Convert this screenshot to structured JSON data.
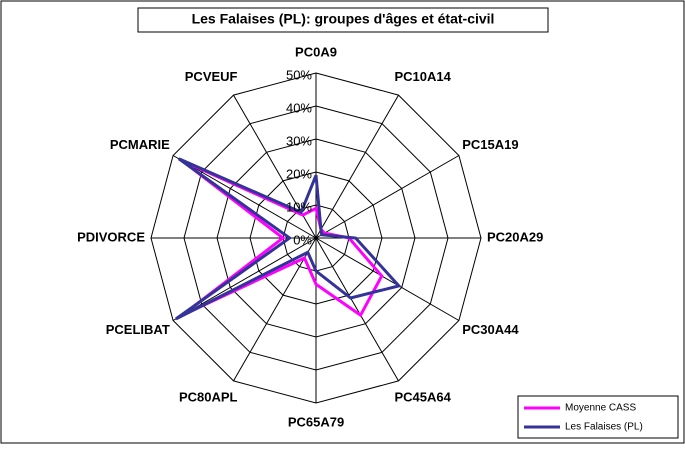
{
  "chart_data": {
    "type": "radar",
    "title": "Les Falaises (PL): groupes d'âges et état-civil",
    "categories": [
      "PC0A9",
      "PC10A14",
      "PC15A19",
      "PC20A29",
      "PC30A44",
      "PC45A64",
      "PC65A79",
      "PC80APL",
      "PCELIBAT",
      "PDIVORCE",
      "PCMARIE",
      "PCVEUF"
    ],
    "series": [
      {
        "name": "Moyenne CASS",
        "color": "#ff00ff",
        "values": [
          9,
          3,
          3,
          10,
          23,
          27,
          14,
          7,
          47,
          10,
          47,
          8
        ]
      },
      {
        "name": "Les Falaises (PL)",
        "color": "#333399",
        "values": [
          19,
          3,
          2,
          12,
          29,
          21,
          10,
          5,
          49,
          8,
          48,
          9
        ]
      }
    ],
    "ylim": [
      0,
      50
    ],
    "yticks": [
      {
        "value": 0,
        "label": "0%"
      },
      {
        "value": 10,
        "label": "10%"
      },
      {
        "value": 20,
        "label": "20%"
      },
      {
        "value": 30,
        "label": "30%"
      },
      {
        "value": 40,
        "label": "40%"
      },
      {
        "value": 50,
        "label": "50%"
      }
    ],
    "grid": true,
    "legend": "bottom-right"
  }
}
